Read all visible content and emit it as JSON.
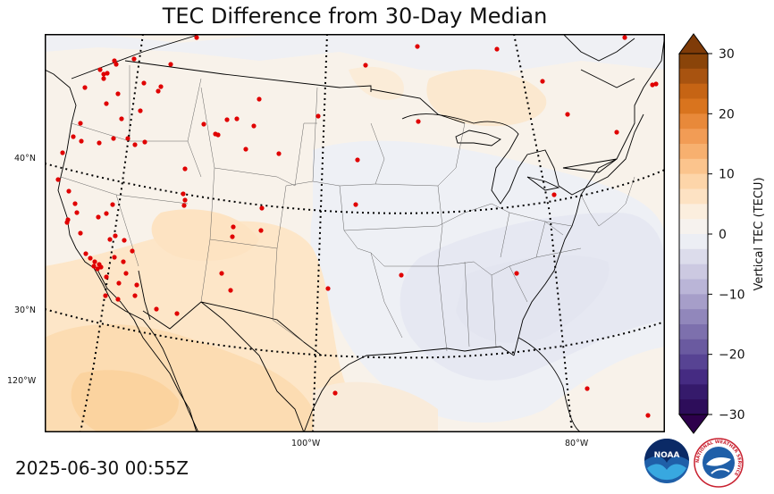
{
  "title": "TEC Difference from 30-Day Median",
  "timestamp": "2025-06-30 00:55Z",
  "lat_labels": [
    "40°N",
    "30°N"
  ],
  "lon_labels": [
    "120°W",
    "100°W",
    "80°W"
  ],
  "colorbar": {
    "label": "Vertical TEC (TECU)",
    "ticks": [
      "30",
      "20",
      "10",
      "0",
      "−10",
      "−20",
      "−30"
    ],
    "min": -30,
    "max": 30,
    "extend": "both",
    "high_color": "#7f3b08",
    "low_color": "#2d004b",
    "colormap": "PuOr_r"
  },
  "map_colors": {
    "ocean_west": "#f7eee2",
    "land_base": "#f8f2ea",
    "warm_southwest": "#fde0b8",
    "warm_strong": "#fbd39f",
    "north_warm": "#fbe8cf",
    "cool_plains": "#eef0f5",
    "cool_southeast": "#e6e8f2",
    "station_marker": "#e00000"
  },
  "logos": {
    "noaa": "NOAA",
    "nws": "NATIONAL WEATHER SERVICE"
  }
}
